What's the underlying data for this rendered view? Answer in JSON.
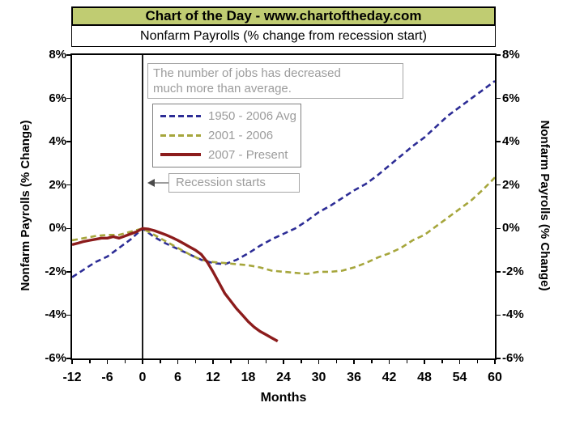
{
  "header": {
    "title": "Chart of the Day - www.chartoftheday.com",
    "subtitle": "Nonfarm Payrolls (% change from recession start)",
    "title_bg_color": "#c0cc72",
    "border_color": "#000000"
  },
  "annotation": {
    "line1": "The number of jobs has decreased",
    "line2": "much more than average."
  },
  "recession_callout": {
    "label": "Recession starts"
  },
  "axes": {
    "y_label_left": "Nonfarm Payrolls (% Change)",
    "y_label_right": "Nonfarm Payrolls (% Change)",
    "x_label": "Months",
    "y_tick_labels": [
      "8%",
      "6%",
      "4%",
      "2%",
      "0%",
      "-2%",
      "-4%",
      "-6%"
    ],
    "x_tick_labels": [
      "-12",
      "-6",
      "0",
      "6",
      "12",
      "18",
      "24",
      "30",
      "36",
      "42",
      "48",
      "54",
      "60"
    ]
  },
  "text_color_gray": "#9c9c9c",
  "chart_data": {
    "type": "line",
    "title": "Nonfarm Payrolls (% change from recession start)",
    "xlabel": "Months",
    "ylabel": "Nonfarm Payrolls (% Change)",
    "xlim": [
      -12,
      60
    ],
    "ylim": [
      -6,
      8
    ],
    "x_tick_values": [
      -12,
      -6,
      0,
      6,
      12,
      18,
      24,
      30,
      36,
      42,
      48,
      54,
      60
    ],
    "x_minor_tick_step": 3,
    "y_tick_values": [
      8,
      6,
      4,
      2,
      0,
      -2,
      -4,
      -6
    ],
    "grid": false,
    "legend_position": "upper-left",
    "recession_start_x": 0,
    "series": [
      {
        "name": "1950 - 2006 Avg",
        "color": "#2d2d96",
        "style": "dashed",
        "stroke_width": 2.6,
        "dash": "7 4.5",
        "points": [
          [
            -12,
            -2.25
          ],
          [
            -10,
            -1.9
          ],
          [
            -8,
            -1.55
          ],
          [
            -6,
            -1.3
          ],
          [
            -4,
            -0.9
          ],
          [
            -2,
            -0.5
          ],
          [
            0,
            0
          ],
          [
            2,
            -0.4
          ],
          [
            4,
            -0.7
          ],
          [
            6,
            -0.95
          ],
          [
            8,
            -1.2
          ],
          [
            10,
            -1.45
          ],
          [
            12,
            -1.6
          ],
          [
            14,
            -1.65
          ],
          [
            16,
            -1.45
          ],
          [
            18,
            -1.15
          ],
          [
            20,
            -0.8
          ],
          [
            22,
            -0.5
          ],
          [
            24,
            -0.25
          ],
          [
            26,
            0
          ],
          [
            28,
            0.35
          ],
          [
            30,
            0.75
          ],
          [
            32,
            1.05
          ],
          [
            34,
            1.4
          ],
          [
            36,
            1.75
          ],
          [
            38,
            2.05
          ],
          [
            40,
            2.45
          ],
          [
            42,
            2.9
          ],
          [
            44,
            3.35
          ],
          [
            46,
            3.8
          ],
          [
            48,
            4.2
          ],
          [
            50,
            4.7
          ],
          [
            52,
            5.2
          ],
          [
            54,
            5.6
          ],
          [
            56,
            6.0
          ],
          [
            58,
            6.4
          ],
          [
            60,
            6.8
          ]
        ]
      },
      {
        "name": "2001 - 2006",
        "color": "#a6a63c",
        "style": "dashed",
        "stroke_width": 2.6,
        "dash": "7 4.5",
        "points": [
          [
            -12,
            -0.55
          ],
          [
            -10,
            -0.45
          ],
          [
            -8,
            -0.35
          ],
          [
            -6,
            -0.3
          ],
          [
            -4,
            -0.3
          ],
          [
            -2,
            -0.15
          ],
          [
            0,
            0
          ],
          [
            2,
            -0.3
          ],
          [
            4,
            -0.6
          ],
          [
            6,
            -0.9
          ],
          [
            8,
            -1.2
          ],
          [
            10,
            -1.45
          ],
          [
            12,
            -1.55
          ],
          [
            14,
            -1.6
          ],
          [
            16,
            -1.65
          ],
          [
            18,
            -1.7
          ],
          [
            20,
            -1.8
          ],
          [
            22,
            -1.95
          ],
          [
            24,
            -2.0
          ],
          [
            26,
            -2.05
          ],
          [
            28,
            -2.1
          ],
          [
            30,
            -2.0
          ],
          [
            32,
            -2.0
          ],
          [
            34,
            -1.95
          ],
          [
            36,
            -1.8
          ],
          [
            38,
            -1.6
          ],
          [
            40,
            -1.35
          ],
          [
            42,
            -1.15
          ],
          [
            44,
            -0.9
          ],
          [
            46,
            -0.55
          ],
          [
            48,
            -0.3
          ],
          [
            50,
            0.1
          ],
          [
            52,
            0.5
          ],
          [
            54,
            0.9
          ],
          [
            56,
            1.3
          ],
          [
            58,
            1.8
          ],
          [
            60,
            2.35
          ]
        ]
      },
      {
        "name": "2007 - Present",
        "color": "#8c1c1c",
        "style": "solid",
        "stroke_width": 3.4,
        "dash": null,
        "points": [
          [
            -12,
            -0.75
          ],
          [
            -11,
            -0.68
          ],
          [
            -10,
            -0.6
          ],
          [
            -9,
            -0.55
          ],
          [
            -8,
            -0.5
          ],
          [
            -7,
            -0.45
          ],
          [
            -6,
            -0.45
          ],
          [
            -5,
            -0.38
          ],
          [
            -4,
            -0.45
          ],
          [
            -3,
            -0.35
          ],
          [
            -2,
            -0.25
          ],
          [
            -1,
            -0.15
          ],
          [
            0,
            0
          ],
          [
            1,
            -0.03
          ],
          [
            2,
            -0.1
          ],
          [
            3,
            -0.2
          ],
          [
            4,
            -0.3
          ],
          [
            5,
            -0.42
          ],
          [
            6,
            -0.55
          ],
          [
            7,
            -0.7
          ],
          [
            8,
            -0.85
          ],
          [
            9,
            -1.0
          ],
          [
            10,
            -1.2
          ],
          [
            11,
            -1.55
          ],
          [
            12,
            -2.0
          ],
          [
            13,
            -2.5
          ],
          [
            14,
            -3.0
          ],
          [
            15,
            -3.35
          ],
          [
            16,
            -3.7
          ],
          [
            17,
            -4.0
          ],
          [
            18,
            -4.3
          ],
          [
            19,
            -4.55
          ],
          [
            20,
            -4.75
          ],
          [
            21,
            -4.9
          ],
          [
            22,
            -5.05
          ],
          [
            23,
            -5.2
          ]
        ]
      }
    ]
  }
}
